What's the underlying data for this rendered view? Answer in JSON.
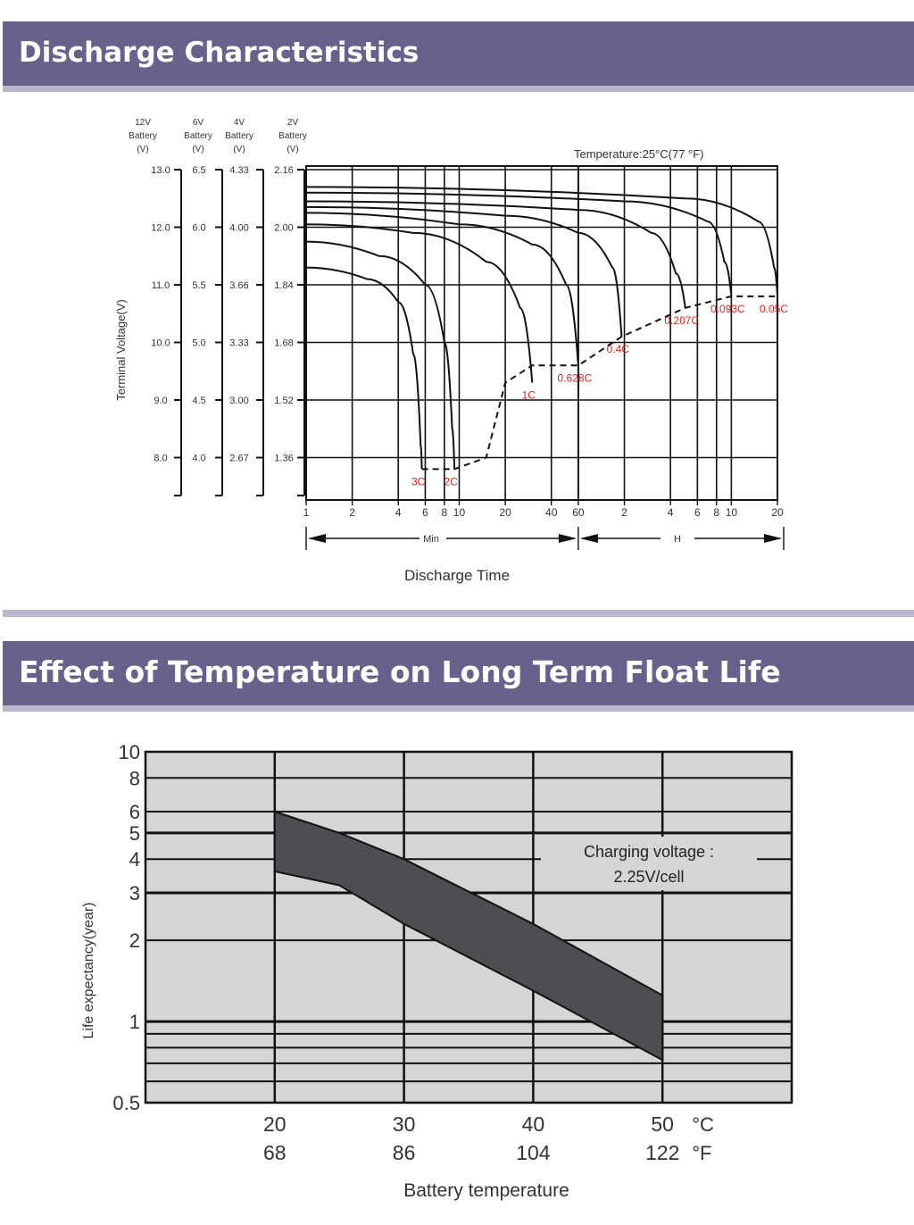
{
  "section1": {
    "title": "Discharge Characteristics"
  },
  "section2": {
    "title": "Effect of Temperature on Long Term Float Life"
  },
  "chart_data": [
    {
      "type": "line",
      "title": "",
      "temperature_label": "Temperature:25°C(77 °F)",
      "xlabel": "Discharge Time",
      "ylabel": "Terminal Voltage(V)",
      "voltage_columns": [
        {
          "header": [
            "12V",
            "Battery",
            "(V)"
          ],
          "ticks": [
            "13.0",
            "12.0",
            "11.0",
            "10.0",
            "9.0",
            "8.0"
          ]
        },
        {
          "header": [
            "6V",
            "Battery",
            "(V)"
          ],
          "ticks": [
            "6.5",
            "6.0",
            "5.5",
            "5.0",
            "4.5",
            "4.0"
          ]
        },
        {
          "header": [
            "4V",
            "Battery",
            "(V)"
          ],
          "ticks": [
            "4.33",
            "4.00",
            "3.66",
            "3.33",
            "3.00",
            "2.67"
          ]
        },
        {
          "header": [
            "2V",
            "Battery",
            "(V)"
          ],
          "ticks": [
            "2.16",
            "2.00",
            "1.84",
            "1.68",
            "1.52",
            "1.36"
          ]
        }
      ],
      "x_ticks": [
        "1",
        "2",
        "4",
        "6",
        "8",
        "10",
        "20",
        "40",
        "60",
        "2",
        "4",
        "6",
        "8",
        "10",
        "20"
      ],
      "x_unit_labels": {
        "min": "Min",
        "hour": "H"
      },
      "y_range_12v": [
        7.3,
        13.0
      ],
      "x_scale": "log (minutes)",
      "series": [
        {
          "name": "3C",
          "points": [
            [
              1,
              11.3
            ],
            [
              2.5,
              11.1
            ],
            [
              4,
              10.7
            ],
            [
              5,
              9.8
            ],
            [
              5.6,
              8.2
            ],
            [
              5.7,
              7.8
            ]
          ]
        },
        {
          "name": "2C",
          "points": [
            [
              1,
              11.75
            ],
            [
              3,
              11.5
            ],
            [
              6,
              11.0
            ],
            [
              8,
              10.0
            ],
            [
              9,
              8.5
            ],
            [
              9.3,
              7.8
            ]
          ]
        },
        {
          "name": "1C",
          "points": [
            [
              1,
              12.05
            ],
            [
              5,
              11.9
            ],
            [
              15,
              11.4
            ],
            [
              25,
              10.6
            ],
            [
              30,
              9.3
            ]
          ]
        },
        {
          "name": "0.628C",
          "points": [
            [
              1,
              12.25
            ],
            [
              10,
              12.05
            ],
            [
              30,
              11.7
            ],
            [
              50,
              11.0
            ],
            [
              60,
              9.6
            ]
          ]
        },
        {
          "name": "0.4C",
          "points": [
            [
              1,
              12.35
            ],
            [
              20,
              12.2
            ],
            [
              60,
              11.9
            ],
            [
              100,
              11.3
            ],
            [
              115,
              10.1
            ]
          ]
        },
        {
          "name": "0.207C",
          "points": [
            [
              1,
              12.45
            ],
            [
              60,
              12.3
            ],
            [
              180,
              11.9
            ],
            [
              260,
              11.2
            ],
            [
              300,
              10.6
            ]
          ]
        },
        {
          "name": "0.093C",
          "points": [
            [
              1,
              12.6
            ],
            [
              120,
              12.45
            ],
            [
              420,
              12.1
            ],
            [
              540,
              11.4
            ],
            [
              600,
              10.8
            ]
          ]
        },
        {
          "name": "0.05C",
          "points": [
            [
              1,
              12.7
            ],
            [
              300,
              12.5
            ],
            [
              900,
              12.1
            ],
            [
              1140,
              11.3
            ],
            [
              1200,
              10.8
            ]
          ]
        }
      ],
      "cutoff_series": {
        "style": "dashed",
        "points": [
          [
            5.7,
            7.8
          ],
          [
            9.3,
            7.8
          ],
          [
            15,
            8.0
          ],
          [
            20,
            9.3
          ],
          [
            30,
            9.6
          ],
          [
            60,
            9.6
          ],
          [
            115,
            10.1
          ],
          [
            300,
            10.6
          ],
          [
            600,
            10.8
          ],
          [
            1200,
            10.8
          ]
        ]
      }
    },
    {
      "type": "area",
      "title": "",
      "xlabel": "Battery temperature",
      "ylabel": "Life expectancy(year)",
      "y_scale": "log",
      "ylim": [
        0.5,
        10
      ],
      "y_ticks": [
        "10",
        "8",
        "6",
        "5",
        "4",
        "3",
        "2",
        "1",
        "0.5"
      ],
      "x_ticks_c": [
        "20",
        "30",
        "40",
        "50"
      ],
      "x_ticks_f": [
        "68",
        "86",
        "104",
        "122"
      ],
      "x_unit_c": "°C",
      "x_unit_f": "°F",
      "xlim_c": [
        10,
        60
      ],
      "annotation": [
        "Charging voltage :",
        "2.25V/cell"
      ],
      "band_upper": [
        [
          20,
          6.0
        ],
        [
          25,
          5.0
        ],
        [
          30,
          4.0
        ],
        [
          40,
          2.3
        ],
        [
          50,
          1.25
        ]
      ],
      "band_lower": [
        [
          20,
          3.6
        ],
        [
          25,
          3.2
        ],
        [
          30,
          2.3
        ],
        [
          40,
          1.3
        ],
        [
          50,
          0.72
        ]
      ]
    }
  ]
}
